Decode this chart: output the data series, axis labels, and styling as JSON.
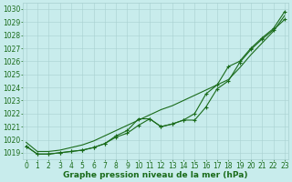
{
  "x": [
    0,
    1,
    2,
    3,
    4,
    5,
    6,
    7,
    8,
    9,
    10,
    11,
    12,
    13,
    14,
    15,
    16,
    17,
    18,
    19,
    20,
    21,
    22,
    23
  ],
  "line1": [
    1019.5,
    1018.9,
    1018.9,
    1019.0,
    1019.1,
    1019.2,
    1019.4,
    1019.7,
    1020.3,
    1020.7,
    1021.6,
    1021.6,
    1021.0,
    1021.2,
    1021.5,
    1022.0,
    1023.5,
    1024.2,
    1025.6,
    1026.0,
    1027.0,
    1027.8,
    1028.5,
    1029.8
  ],
  "line2": [
    1019.5,
    1018.9,
    1018.9,
    1019.0,
    1019.1,
    1019.2,
    1019.4,
    1019.7,
    1020.2,
    1020.5,
    1021.1,
    1021.6,
    1021.0,
    1021.2,
    1021.5,
    1021.5,
    1022.5,
    1023.9,
    1024.5,
    1025.9,
    1026.9,
    1027.7,
    1028.4,
    1029.2
  ],
  "line3": [
    1019.8,
    1019.1,
    1019.1,
    1019.2,
    1019.4,
    1019.6,
    1019.9,
    1020.3,
    1020.7,
    1021.1,
    1021.5,
    1021.9,
    1022.3,
    1022.6,
    1023.0,
    1023.4,
    1023.8,
    1024.2,
    1024.6,
    1025.5,
    1026.5,
    1027.4,
    1028.3,
    1029.5
  ],
  "line_color": "#1a6b1a",
  "bg_color": "#c8ecec",
  "grid_color": "#a8d0d0",
  "xlabel": "Graphe pression niveau de la mer (hPa)",
  "ylim": [
    1018.5,
    1030.5
  ],
  "yticks": [
    1019,
    1020,
    1021,
    1022,
    1023,
    1024,
    1025,
    1026,
    1027,
    1028,
    1029,
    1030
  ],
  "xticks": [
    0,
    1,
    2,
    3,
    4,
    5,
    6,
    7,
    8,
    9,
    10,
    11,
    12,
    13,
    14,
    15,
    16,
    17,
    18,
    19,
    20,
    21,
    22,
    23
  ],
  "marker": "+",
  "markersize": 3.5,
  "linewidth": 0.8,
  "tick_fontsize": 5.5,
  "label_fontsize": 6.5
}
